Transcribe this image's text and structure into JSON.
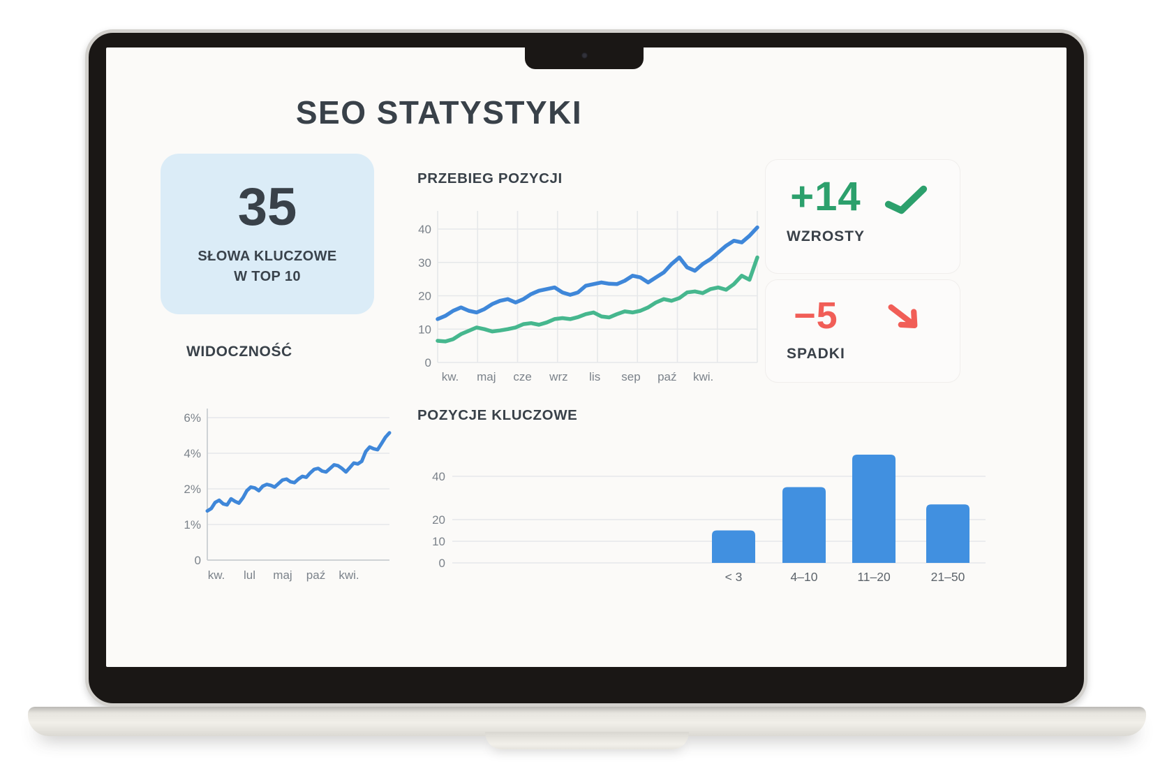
{
  "page": {
    "title": "SEO STATYSTYKI"
  },
  "summary_card": {
    "value": "35",
    "label_line1": "SŁOWA KLUCZOWE",
    "label_line2": "W TOP 10",
    "bg_color": "#dbecf7"
  },
  "stats": {
    "increases": {
      "value": "+14",
      "label": "WZROSTY",
      "color": "#2ca06c",
      "icon": "trend-up-zigzag"
    },
    "decreases": {
      "value": "−5",
      "label": "SPADKI",
      "color": "#f15e57",
      "icon": "arrow-down-right"
    }
  },
  "chart_data": [
    {
      "id": "positions_trend",
      "type": "line",
      "title": "PRZEBIEG POZYCJI",
      "x_tick_labels": [
        "kw.",
        "maj",
        "cze",
        "wrz",
        "lis",
        "sep",
        "paź",
        "kwi."
      ],
      "y_ticks": [
        0,
        10,
        20,
        30,
        40
      ],
      "ylim": [
        0,
        42
      ],
      "grid": true,
      "legend_position": "none",
      "series": [
        {
          "name": "seria_niebieska",
          "color": "#3f87d9",
          "values": [
            13,
            14,
            15.5,
            16.5,
            15.5,
            15,
            16,
            17.5,
            18.5,
            19,
            18,
            19,
            20.5,
            21.5,
            22,
            22.5,
            21,
            20.3,
            21,
            23,
            23.5,
            24,
            23.6,
            23.5,
            24.5,
            26,
            25.5,
            24,
            25.5,
            27,
            29.5,
            31.5,
            28.5,
            27.5,
            29.5,
            31,
            33,
            35,
            36.5,
            36,
            38,
            40.5
          ]
        },
        {
          "name": "seria_zielona",
          "color": "#46b78e",
          "values": [
            6.5,
            6.3,
            7,
            8.5,
            9.5,
            10.5,
            10,
            9.3,
            9.6,
            10,
            10.5,
            11.5,
            11.8,
            11.3,
            12,
            13,
            13.3,
            13,
            13.6,
            14.5,
            15,
            13.8,
            13.5,
            14.5,
            15.3,
            15,
            15.5,
            16.5,
            18,
            19,
            18.5,
            19.3,
            21,
            21.3,
            20.8,
            22,
            22.5,
            21.8,
            23.5,
            26,
            24.8,
            31.5
          ]
        }
      ]
    },
    {
      "id": "visibility",
      "type": "line",
      "title": "WIDOCZNOŚĆ",
      "x_tick_labels": [
        "kw.",
        "lul",
        "maj",
        "paź",
        "kwi."
      ],
      "y_ticks": [
        0,
        1,
        2,
        4,
        6
      ],
      "y_tick_labels": [
        "0",
        "1%",
        "2%",
        "4%",
        "6%"
      ],
      "axis_scale": "tick-ordinal",
      "grid": true,
      "series": [
        {
          "name": "widocznosc",
          "color": "#3f87d9",
          "values": [
            1.38,
            1.45,
            1.62,
            1.68,
            1.58,
            1.55,
            1.72,
            1.65,
            1.6,
            1.75,
            1.95,
            2.1,
            2.05,
            1.95,
            2.15,
            2.25,
            2.2,
            2.1,
            2.3,
            2.5,
            2.55,
            2.4,
            2.35,
            2.55,
            2.7,
            2.65,
            2.9,
            3.1,
            3.15,
            3.0,
            2.95,
            3.15,
            3.35,
            3.3,
            3.15,
            2.95,
            3.2,
            3.45,
            3.4,
            3.55,
            4.1,
            4.35,
            4.25,
            4.2,
            4.55,
            4.9,
            5.15
          ]
        }
      ]
    },
    {
      "id": "key_positions",
      "type": "bar",
      "title": "POZYCJE KLUCZOWE",
      "categories": [
        "< 3",
        "4–10",
        "11–20",
        "21–50"
      ],
      "values": [
        15,
        35,
        50,
        27
      ],
      "y_ticks": [
        0,
        10,
        20,
        40
      ],
      "axis_scale": "linear",
      "grid": true,
      "bar_color": "#4190e0"
    }
  ]
}
